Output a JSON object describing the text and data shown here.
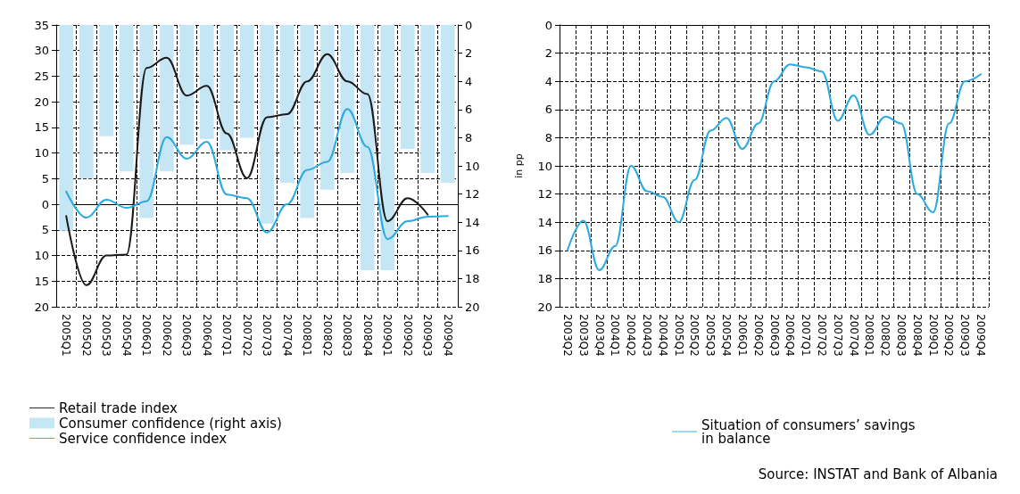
{
  "chart_data": [
    {
      "type": "line",
      "categories": [
        "2005Q1",
        "2005Q2",
        "2005Q3",
        "2005Q4",
        "2006Q1",
        "2006Q2",
        "2006Q3",
        "2006Q4",
        "2007Q1",
        "2007Q2",
        "2007Q3",
        "2007Q4",
        "2008Q1",
        "2008Q2",
        "2008Q3",
        "2008Q4",
        "2009Q1",
        "2009Q2",
        "2009Q3",
        "2009Q4"
      ],
      "series": [
        {
          "name": "Retail trade index",
          "type": "line",
          "color": "#1a1a1a",
          "values": [
            -2.3,
            -15.8,
            -10,
            -9.8,
            26.6,
            28.6,
            21.2,
            23.1,
            13.8,
            5.1,
            17,
            17.6,
            24,
            29.3,
            24,
            21.5,
            -3.3,
            1.2,
            -2,
            null
          ]
        },
        {
          "name": "Consumer confidence (right axis)",
          "type": "bar",
          "axis": "y2",
          "color": "#c5e6f5",
          "values": [
            14.6,
            10.9,
            7.9,
            10.4,
            13.7,
            10.4,
            8.5,
            8.1,
            8.9,
            8,
            14.1,
            11.2,
            13.7,
            11.7,
            10.5,
            17.4,
            17.4,
            8.8,
            10.5,
            11.2
          ]
        },
        {
          "name": "Service confidence index",
          "type": "line",
          "color": "#29abe2",
          "values": [
            2.5,
            -2.6,
            0.9,
            -0.7,
            0.6,
            13.1,
            8.9,
            12.2,
            1.9,
            1.2,
            -5.5,
            0,
            6.7,
            8.3,
            18.6,
            11.2,
            -6.8,
            -3.3,
            -2.4,
            -2.3
          ]
        }
      ],
      "ylim": [
        -20,
        35
      ],
      "yticks": [
        {
          "value": -20,
          "label": "20"
        },
        {
          "value": -15,
          "label": "15"
        },
        {
          "value": -10,
          "label": "10"
        },
        {
          "value": -5,
          "label": "5"
        },
        0,
        5,
        10,
        15,
        20,
        25,
        30,
        35
      ],
      "y2lim": [
        20,
        0
      ],
      "y2ticks": [
        0,
        2,
        4,
        6,
        8,
        10,
        12,
        14,
        16,
        18,
        20
      ],
      "grid": true,
      "legend": "bottom left",
      "marker": "none",
      "line_style": "solid"
    },
    {
      "type": "line",
      "ylabel": "in pp",
      "categories": [
        "2003Q2",
        "2003Q3",
        "2003Q4",
        "2004Q1",
        "2004Q2",
        "2004Q3",
        "2004Q4",
        "2005Q1",
        "2005Q2",
        "2005Q3",
        "2005Q4",
        "2006Q1",
        "2006Q2",
        "2006Q3",
        "2006Q4",
        "2007Q1",
        "2007Q2",
        "2007Q3",
        "2007Q4",
        "2008Q1",
        "2008Q2",
        "2008Q3",
        "2008Q4",
        "2009Q1",
        "2009Q2",
        "2009Q3",
        "2009Q4"
      ],
      "series": [
        {
          "name": "Situation of consumers’ savings in balance",
          "color": "#29abe2",
          "values": [
            16,
            13.9,
            17.4,
            15.7,
            10,
            11.8,
            12.2,
            14,
            11,
            7.5,
            6.6,
            8.8,
            7,
            4,
            2.8,
            3,
            3.3,
            6.8,
            5,
            7.8,
            6.5,
            7,
            12,
            13.3,
            7,
            4,
            3.5
          ]
        }
      ],
      "ylim": [
        20,
        0
      ],
      "yticks": [
        0,
        2,
        4,
        6,
        8,
        10,
        12,
        14,
        16,
        18,
        20
      ],
      "grid": true,
      "legend": "bottom",
      "marker": "none",
      "line_style": "solid",
      "annotations": [
        "Source: INSTAT and Bank of Albania"
      ]
    }
  ]
}
